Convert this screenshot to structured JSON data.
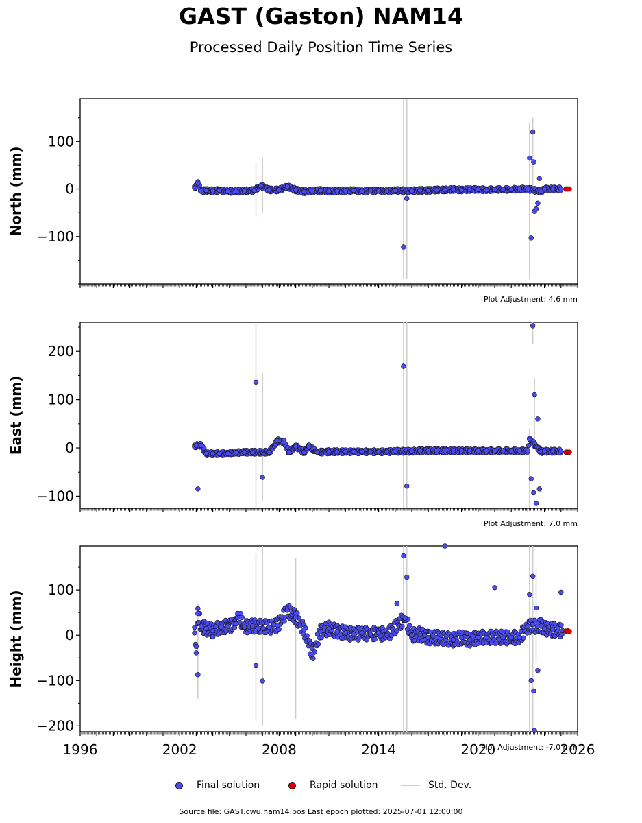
{
  "figure": {
    "title": "GAST (Gaston) NAM14",
    "subtitle": "Processed Daily Position Time Series",
    "source_note": "Source file: GAST.cwu.nam14.pos  Last epoch plotted: 2025-07-01 12:00:00"
  },
  "legend": {
    "final_label": "Final solution",
    "rapid_label": "Rapid solution",
    "stddev_label": "Std. Dev."
  },
  "colors": {
    "final": "#4b4bf0",
    "rapid": "#e00000",
    "stddev": "#cccccc",
    "marker_edge": "#111111"
  },
  "chart_data": [
    {
      "type": "scatter",
      "ylabel": "North (mm)",
      "adjustment": "Plot Adjustment: 4.6 mm",
      "xlim": [
        1996,
        2026
      ],
      "ylim": [
        -200,
        190
      ],
      "yticks": [
        -100,
        0,
        100
      ],
      "xticks": [],
      "xlabel": "",
      "series": [
        {
          "name": "Final solution",
          "points": [
            [
              2002.9,
              2
            ],
            [
              2003.1,
              12
            ],
            [
              2003.3,
              -4
            ],
            [
              2003.6,
              -3
            ],
            [
              2004.0,
              -4
            ],
            [
              2004.4,
              -3
            ],
            [
              2004.9,
              -5
            ],
            [
              2005.4,
              -5
            ],
            [
              2005.9,
              -4
            ],
            [
              2006.5,
              -3
            ],
            [
              2006.9,
              7
            ],
            [
              2007.4,
              -2
            ],
            [
              2008.0,
              -2
            ],
            [
              2008.5,
              5
            ],
            [
              2009.0,
              -2
            ],
            [
              2009.5,
              -6
            ],
            [
              2010.0,
              -4
            ],
            [
              2010.5,
              -3
            ],
            [
              2011.0,
              -5
            ],
            [
              2011.5,
              -4
            ],
            [
              2012.0,
              -4
            ],
            [
              2012.5,
              -3
            ],
            [
              2013.0,
              -5
            ],
            [
              2013.5,
              -4
            ],
            [
              2014.0,
              -4
            ],
            [
              2014.5,
              -5
            ],
            [
              2015.0,
              -3
            ],
            [
              2015.5,
              -122
            ],
            [
              2015.7,
              -20
            ],
            [
              2016.0,
              -4
            ],
            [
              2016.5,
              -3
            ],
            [
              2017.0,
              -3
            ],
            [
              2017.5,
              -2
            ],
            [
              2018.0,
              -2
            ],
            [
              2018.5,
              -1
            ],
            [
              2019.0,
              -2
            ],
            [
              2019.5,
              -1
            ],
            [
              2020.0,
              -1
            ],
            [
              2020.5,
              -2
            ],
            [
              2021.0,
              -1
            ],
            [
              2021.5,
              -1
            ],
            [
              2022.0,
              -1
            ],
            [
              2022.5,
              0
            ],
            [
              2023.0,
              0
            ],
            [
              2023.1,
              65
            ],
            [
              2023.2,
              -103
            ],
            [
              2023.3,
              120
            ],
            [
              2023.35,
              57
            ],
            [
              2023.4,
              -47
            ],
            [
              2023.5,
              -42
            ],
            [
              2023.6,
              -30
            ],
            [
              2023.7,
              22
            ],
            [
              2023.8,
              -5
            ],
            [
              2024.0,
              0
            ],
            [
              2024.5,
              0
            ],
            [
              2025.0,
              0
            ]
          ]
        },
        {
          "name": "Rapid solution",
          "points": [
            [
              2025.3,
              0
            ],
            [
              2025.4,
              0
            ],
            [
              2025.5,
              0
            ]
          ]
        },
        {
          "name": "Std. Dev.",
          "bars": [
            [
              2006.6,
              -60,
              55
            ],
            [
              2007.0,
              -50,
              65
            ],
            [
              2015.5,
              -190,
              190
            ],
            [
              2015.7,
              -190,
              190
            ],
            [
              2023.1,
              -190,
              140
            ],
            [
              2023.3,
              0,
              150
            ]
          ]
        }
      ]
    },
    {
      "type": "scatter",
      "ylabel": "East (mm)",
      "adjustment": "Plot Adjustment: 7.0 mm",
      "xlim": [
        1996,
        2026
      ],
      "ylim": [
        -125,
        260
      ],
      "yticks": [
        -100,
        0,
        100,
        200
      ],
      "xticks": [],
      "xlabel": "",
      "series": [
        {
          "name": "Final solution",
          "points": [
            [
              2002.9,
              2
            ],
            [
              2003.0,
              5
            ],
            [
              2003.1,
              -85
            ],
            [
              2003.3,
              5
            ],
            [
              2003.6,
              -12
            ],
            [
              2004.0,
              -12
            ],
            [
              2004.4,
              -12
            ],
            [
              2004.9,
              -12
            ],
            [
              2005.4,
              -10
            ],
            [
              2005.9,
              -9
            ],
            [
              2006.4,
              -9
            ],
            [
              2006.6,
              136
            ],
            [
              2007.0,
              -61
            ],
            [
              2007.4,
              -9
            ],
            [
              2007.9,
              15
            ],
            [
              2008.3,
              12
            ],
            [
              2008.6,
              -9
            ],
            [
              2009.0,
              3
            ],
            [
              2009.5,
              -9
            ],
            [
              2009.8,
              3
            ],
            [
              2010.3,
              -9
            ],
            [
              2011.0,
              -8
            ],
            [
              2011.5,
              -8
            ],
            [
              2012.0,
              -8
            ],
            [
              2012.5,
              -8
            ],
            [
              2013.0,
              -8
            ],
            [
              2013.5,
              -8
            ],
            [
              2014.0,
              -8
            ],
            [
              2014.5,
              -8
            ],
            [
              2015.0,
              -7
            ],
            [
              2015.5,
              169
            ],
            [
              2015.7,
              -79
            ],
            [
              2016.0,
              -7
            ],
            [
              2016.5,
              -6
            ],
            [
              2017.0,
              -6
            ],
            [
              2017.5,
              -6
            ],
            [
              2018.0,
              -6
            ],
            [
              2018.5,
              -6
            ],
            [
              2019.0,
              -6
            ],
            [
              2019.5,
              -6
            ],
            [
              2020.0,
              -6
            ],
            [
              2020.5,
              -6
            ],
            [
              2021.0,
              -6
            ],
            [
              2021.5,
              -6
            ],
            [
              2022.0,
              -6
            ],
            [
              2022.5,
              -6
            ],
            [
              2023.0,
              -6
            ],
            [
              2023.1,
              18
            ],
            [
              2023.2,
              -64
            ],
            [
              2023.3,
              253
            ],
            [
              2023.35,
              -93
            ],
            [
              2023.4,
              110
            ],
            [
              2023.5,
              -115
            ],
            [
              2023.6,
              60
            ],
            [
              2023.7,
              -85
            ],
            [
              2023.8,
              -8
            ],
            [
              2024.0,
              -7
            ],
            [
              2024.5,
              -7
            ],
            [
              2025.0,
              -7
            ]
          ]
        },
        {
          "name": "Rapid solution",
          "points": [
            [
              2025.3,
              -9
            ],
            [
              2025.4,
              -9
            ],
            [
              2025.5,
              -9
            ]
          ]
        },
        {
          "name": "Std. Dev.",
          "bars": [
            [
              2006.6,
              -125,
              260
            ],
            [
              2007.0,
              -110,
              155
            ],
            [
              2015.5,
              -125,
              260
            ],
            [
              2015.7,
              -125,
              260
            ],
            [
              2023.1,
              -125,
              40
            ],
            [
              2023.3,
              215,
              260
            ],
            [
              2023.4,
              0,
              145
            ]
          ]
        }
      ]
    },
    {
      "type": "scatter",
      "ylabel": "Height (mm)",
      "adjustment": "Plot Adjustment: -7.0 mm",
      "xlim": [
        1996,
        2026
      ],
      "ylim": [
        -213,
        197
      ],
      "yticks": [
        -200,
        -100,
        0,
        100
      ],
      "xticks": [
        1996,
        2002,
        2008,
        2014,
        2020,
        2026
      ],
      "xlabel": "",
      "series": [
        {
          "name": "Final solution",
          "points": [
            [
              2002.9,
              5
            ],
            [
              2003.0,
              -25
            ],
            [
              2003.1,
              48
            ],
            [
              2003.1,
              -87
            ],
            [
              2003.3,
              20
            ],
            [
              2003.6,
              15
            ],
            [
              2004.0,
              10
            ],
            [
              2004.5,
              18
            ],
            [
              2004.9,
              20
            ],
            [
              2005.4,
              25
            ],
            [
              2005.5,
              48
            ],
            [
              2005.9,
              18
            ],
            [
              2006.4,
              20
            ],
            [
              2006.6,
              -67
            ],
            [
              2007.0,
              -101
            ],
            [
              2007.4,
              18
            ],
            [
              2007.9,
              22
            ],
            [
              2008.5,
              55
            ],
            [
              2009.0,
              40
            ],
            [
              2009.5,
              12
            ],
            [
              2010.0,
              -42
            ],
            [
              2010.5,
              8
            ],
            [
              2011.0,
              15
            ],
            [
              2011.5,
              8
            ],
            [
              2012.0,
              5
            ],
            [
              2012.5,
              2
            ],
            [
              2013.0,
              5
            ],
            [
              2013.5,
              2
            ],
            [
              2014.0,
              5
            ],
            [
              2014.5,
              0
            ],
            [
              2015.1,
              70
            ],
            [
              2015.5,
              175
            ],
            [
              2015.7,
              128
            ],
            [
              2015.6,
              38
            ],
            [
              2016.0,
              0
            ],
            [
              2016.5,
              2
            ],
            [
              2017.0,
              -5
            ],
            [
              2017.5,
              -5
            ],
            [
              2018.0,
              197
            ],
            [
              2018.5,
              -10
            ],
            [
              2019.0,
              -5
            ],
            [
              2019.5,
              -10
            ],
            [
              2020.0,
              -5
            ],
            [
              2020.5,
              -5
            ],
            [
              2021.0,
              105
            ],
            [
              2021.5,
              -5
            ],
            [
              2022.0,
              -5
            ],
            [
              2022.5,
              -5
            ],
            [
              2023.0,
              20
            ],
            [
              2023.1,
              90
            ],
            [
              2023.2,
              -100
            ],
            [
              2023.3,
              130
            ],
            [
              2023.35,
              -123
            ],
            [
              2023.4,
              -210
            ],
            [
              2023.5,
              60
            ],
            [
              2023.6,
              -78
            ],
            [
              2023.8,
              20
            ],
            [
              2024.0,
              15
            ],
            [
              2024.5,
              12
            ],
            [
              2025.0,
              95
            ],
            [
              2025.1,
              10
            ]
          ]
        },
        {
          "name": "Rapid solution",
          "points": [
            [
              2025.3,
              9
            ],
            [
              2025.4,
              10
            ],
            [
              2025.5,
              8
            ]
          ]
        },
        {
          "name": "Std. Dev.",
          "bars": [
            [
              2003.1,
              -140,
              70
            ],
            [
              2006.6,
              -190,
              180
            ],
            [
              2007.0,
              -200,
              197
            ],
            [
              2009.0,
              -185,
              170
            ],
            [
              2015.5,
              -213,
              197
            ],
            [
              2015.7,
              -213,
              197
            ],
            [
              2023.1,
              -213,
              197
            ],
            [
              2023.3,
              -213,
              197
            ],
            [
              2023.5,
              -60,
              150
            ]
          ]
        }
      ]
    }
  ]
}
